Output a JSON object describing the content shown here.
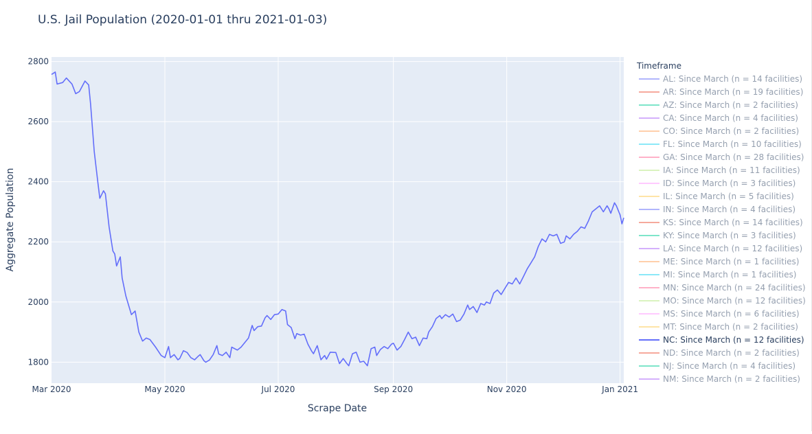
{
  "chart_data": {
    "type": "line",
    "title": "U.S. Jail Population (2020-01-01 thru 2021-01-03)",
    "xlabel": "Scrape Date",
    "ylabel": "Aggregate Population",
    "xlim": [
      "2020-03-01",
      "2021-01-03"
    ],
    "ylim": [
      1730,
      2815
    ],
    "x_ticks": [
      {
        "date": "2020-03-01",
        "label": "Mar 2020"
      },
      {
        "date": "2020-05-01",
        "label": "May 2020"
      },
      {
        "date": "2020-07-01",
        "label": "Jul 2020"
      },
      {
        "date": "2020-09-01",
        "label": "Sep 2020"
      },
      {
        "date": "2020-11-01",
        "label": "Nov 2020"
      },
      {
        "date": "2021-01-01",
        "label": "Jan 2021"
      }
    ],
    "y_ticks": [
      {
        "value": 1800,
        "label": "1800"
      },
      {
        "value": 2000,
        "label": "2000"
      },
      {
        "value": 2200,
        "label": "2200"
      },
      {
        "value": 2400,
        "label": "2400"
      },
      {
        "value": 2600,
        "label": "2600"
      },
      {
        "value": 2800,
        "label": "2800"
      }
    ],
    "grid": true,
    "legend": {
      "title": "Timeframe",
      "position": "right",
      "entries": [
        {
          "label": "AL: Since March (n = 14 facilities)",
          "color": "#636efa",
          "active": false
        },
        {
          "label": "AR: Since March (n = 19 facilities)",
          "color": "#ef553b",
          "active": false
        },
        {
          "label": "AZ: Since March (n = 2 facilities)",
          "color": "#00cc96",
          "active": false
        },
        {
          "label": "CA: Since March (n = 4 facilities)",
          "color": "#ab63fa",
          "active": false
        },
        {
          "label": "CO: Since March (n = 2 facilities)",
          "color": "#ffa15a",
          "active": false
        },
        {
          "label": "FL: Since March (n = 10 facilities)",
          "color": "#19d3f3",
          "active": false
        },
        {
          "label": "GA: Since March (n = 28 facilities)",
          "color": "#ff6692",
          "active": false
        },
        {
          "label": "IA: Since March (n = 11 facilities)",
          "color": "#b6e880",
          "active": false
        },
        {
          "label": "ID: Since March (n = 3 facilities)",
          "color": "#ff97ff",
          "active": false
        },
        {
          "label": "IL: Since March (n = 5 facilities)",
          "color": "#fecb52",
          "active": false
        },
        {
          "label": "IN: Since March (n = 4 facilities)",
          "color": "#636efa",
          "active": false
        },
        {
          "label": "KS: Since March (n = 14 facilities)",
          "color": "#ef553b",
          "active": false
        },
        {
          "label": "KY: Since March (n = 3 facilities)",
          "color": "#00cc96",
          "active": false
        },
        {
          "label": "LA: Since March (n = 12 facilities)",
          "color": "#ab63fa",
          "active": false
        },
        {
          "label": "ME: Since March (n = 1 facilities)",
          "color": "#ffa15a",
          "active": false
        },
        {
          "label": "MI: Since March (n = 1 facilities)",
          "color": "#19d3f3",
          "active": false
        },
        {
          "label": "MN: Since March (n = 24 facilities)",
          "color": "#ff6692",
          "active": false
        },
        {
          "label": "MO: Since March (n = 12 facilities)",
          "color": "#b6e880",
          "active": false
        },
        {
          "label": "MS: Since March (n = 6 facilities)",
          "color": "#ff97ff",
          "active": false
        },
        {
          "label": "MT: Since March (n = 2 facilities)",
          "color": "#fecb52",
          "active": false
        },
        {
          "label": "NC: Since March (n = 12 facilities)",
          "color": "#636efa",
          "active": true
        },
        {
          "label": "ND: Since March (n = 2 facilities)",
          "color": "#ef553b",
          "active": false
        },
        {
          "label": "NJ: Since March (n = 4 facilities)",
          "color": "#00cc96",
          "active": false
        },
        {
          "label": "NM: Since March (n = 2 facilities)",
          "color": "#ab63fa",
          "active": false
        }
      ]
    },
    "series": [
      {
        "name": "NC: Since March (n = 12 facilities)",
        "color": "#636efa",
        "points": [
          [
            "2020-03-01",
            2757
          ],
          [
            "2020-03-03",
            2765
          ],
          [
            "2020-03-04",
            2725
          ],
          [
            "2020-03-07",
            2730
          ],
          [
            "2020-03-09",
            2745
          ],
          [
            "2020-03-12",
            2725
          ],
          [
            "2020-03-14",
            2693
          ],
          [
            "2020-03-16",
            2700
          ],
          [
            "2020-03-19",
            2735
          ],
          [
            "2020-03-21",
            2722
          ],
          [
            "2020-03-22",
            2660
          ],
          [
            "2020-03-24",
            2500
          ],
          [
            "2020-03-26",
            2395
          ],
          [
            "2020-03-27",
            2345
          ],
          [
            "2020-03-29",
            2370
          ],
          [
            "2020-03-30",
            2360
          ],
          [
            "2020-04-01",
            2250
          ],
          [
            "2020-04-03",
            2170
          ],
          [
            "2020-04-04",
            2160
          ],
          [
            "2020-04-05",
            2120
          ],
          [
            "2020-04-07",
            2150
          ],
          [
            "2020-04-08",
            2080
          ],
          [
            "2020-04-10",
            2020
          ],
          [
            "2020-04-13",
            1958
          ],
          [
            "2020-04-15",
            1970
          ],
          [
            "2020-04-17",
            1900
          ],
          [
            "2020-04-19",
            1870
          ],
          [
            "2020-04-21",
            1880
          ],
          [
            "2020-04-23",
            1875
          ],
          [
            "2020-04-26",
            1850
          ],
          [
            "2020-04-29",
            1822
          ],
          [
            "2020-05-01",
            1815
          ],
          [
            "2020-05-03",
            1852
          ],
          [
            "2020-05-04",
            1815
          ],
          [
            "2020-05-06",
            1825
          ],
          [
            "2020-05-08",
            1808
          ],
          [
            "2020-05-09",
            1812
          ],
          [
            "2020-05-11",
            1838
          ],
          [
            "2020-05-13",
            1832
          ],
          [
            "2020-05-15",
            1815
          ],
          [
            "2020-05-17",
            1808
          ],
          [
            "2020-05-19",
            1820
          ],
          [
            "2020-05-20",
            1825
          ],
          [
            "2020-05-22",
            1805
          ],
          [
            "2020-05-23",
            1800
          ],
          [
            "2020-05-25",
            1807
          ],
          [
            "2020-05-27",
            1825
          ],
          [
            "2020-05-29",
            1855
          ],
          [
            "2020-05-30",
            1827
          ],
          [
            "2020-06-01",
            1822
          ],
          [
            "2020-06-03",
            1833
          ],
          [
            "2020-06-05",
            1815
          ],
          [
            "2020-06-06",
            1850
          ],
          [
            "2020-06-09",
            1840
          ],
          [
            "2020-06-11",
            1850
          ],
          [
            "2020-06-13",
            1865
          ],
          [
            "2020-06-15",
            1880
          ],
          [
            "2020-06-17",
            1922
          ],
          [
            "2020-06-18",
            1905
          ],
          [
            "2020-06-20",
            1918
          ],
          [
            "2020-06-22",
            1920
          ],
          [
            "2020-06-24",
            1948
          ],
          [
            "2020-06-25",
            1955
          ],
          [
            "2020-06-27",
            1942
          ],
          [
            "2020-06-29",
            1958
          ],
          [
            "2020-07-01",
            1960
          ],
          [
            "2020-07-03",
            1975
          ],
          [
            "2020-07-05",
            1970
          ],
          [
            "2020-07-06",
            1925
          ],
          [
            "2020-07-08",
            1915
          ],
          [
            "2020-07-10",
            1878
          ],
          [
            "2020-07-11",
            1895
          ],
          [
            "2020-07-13",
            1890
          ],
          [
            "2020-07-15",
            1893
          ],
          [
            "2020-07-17",
            1860
          ],
          [
            "2020-07-19",
            1837
          ],
          [
            "2020-07-20",
            1828
          ],
          [
            "2020-07-22",
            1855
          ],
          [
            "2020-07-24",
            1808
          ],
          [
            "2020-07-26",
            1822
          ],
          [
            "2020-07-27",
            1810
          ],
          [
            "2020-07-29",
            1833
          ],
          [
            "2020-08-01",
            1832
          ],
          [
            "2020-08-03",
            1795
          ],
          [
            "2020-08-05",
            1812
          ],
          [
            "2020-08-07",
            1795
          ],
          [
            "2020-08-08",
            1788
          ],
          [
            "2020-08-10",
            1828
          ],
          [
            "2020-08-12",
            1833
          ],
          [
            "2020-08-14",
            1800
          ],
          [
            "2020-08-16",
            1803
          ],
          [
            "2020-08-18",
            1788
          ],
          [
            "2020-08-20",
            1845
          ],
          [
            "2020-08-22",
            1850
          ],
          [
            "2020-08-23",
            1822
          ],
          [
            "2020-08-25",
            1842
          ],
          [
            "2020-08-27",
            1852
          ],
          [
            "2020-08-29",
            1845
          ],
          [
            "2020-08-31",
            1860
          ],
          [
            "2020-09-01",
            1863
          ],
          [
            "2020-09-03",
            1840
          ],
          [
            "2020-09-05",
            1852
          ],
          [
            "2020-09-07",
            1875
          ],
          [
            "2020-09-09",
            1900
          ],
          [
            "2020-09-11",
            1878
          ],
          [
            "2020-09-13",
            1883
          ],
          [
            "2020-09-15",
            1855
          ],
          [
            "2020-09-17",
            1880
          ],
          [
            "2020-09-19",
            1878
          ],
          [
            "2020-09-20",
            1900
          ],
          [
            "2020-09-22",
            1918
          ],
          [
            "2020-09-24",
            1945
          ],
          [
            "2020-09-26",
            1955
          ],
          [
            "2020-09-27",
            1945
          ],
          [
            "2020-09-29",
            1958
          ],
          [
            "2020-10-01",
            1950
          ],
          [
            "2020-10-03",
            1960
          ],
          [
            "2020-10-05",
            1935
          ],
          [
            "2020-10-07",
            1940
          ],
          [
            "2020-10-09",
            1960
          ],
          [
            "2020-10-11",
            1990
          ],
          [
            "2020-10-12",
            1975
          ],
          [
            "2020-10-14",
            1985
          ],
          [
            "2020-10-16",
            1965
          ],
          [
            "2020-10-18",
            1995
          ],
          [
            "2020-10-20",
            1990
          ],
          [
            "2020-10-21",
            2000
          ],
          [
            "2020-10-23",
            1995
          ],
          [
            "2020-10-25",
            2030
          ],
          [
            "2020-10-27",
            2040
          ],
          [
            "2020-10-29",
            2025
          ],
          [
            "2020-10-31",
            2045
          ],
          [
            "2020-11-02",
            2065
          ],
          [
            "2020-11-04",
            2060
          ],
          [
            "2020-11-06",
            2080
          ],
          [
            "2020-11-08",
            2060
          ],
          [
            "2020-11-10",
            2085
          ],
          [
            "2020-11-12",
            2110
          ],
          [
            "2020-11-14",
            2130
          ],
          [
            "2020-11-16",
            2150
          ],
          [
            "2020-11-18",
            2185
          ],
          [
            "2020-11-20",
            2210
          ],
          [
            "2020-11-22",
            2200
          ],
          [
            "2020-11-24",
            2225
          ],
          [
            "2020-11-26",
            2220
          ],
          [
            "2020-11-28",
            2225
          ],
          [
            "2020-11-30",
            2195
          ],
          [
            "2020-12-02",
            2200
          ],
          [
            "2020-12-03",
            2220
          ],
          [
            "2020-12-05",
            2210
          ],
          [
            "2020-12-07",
            2225
          ],
          [
            "2020-12-09",
            2235
          ],
          [
            "2020-12-11",
            2250
          ],
          [
            "2020-12-13",
            2245
          ],
          [
            "2020-12-15",
            2270
          ],
          [
            "2020-12-17",
            2300
          ],
          [
            "2020-12-19",
            2310
          ],
          [
            "2020-12-21",
            2320
          ],
          [
            "2020-12-23",
            2300
          ],
          [
            "2020-12-25",
            2320
          ],
          [
            "2020-12-26",
            2310
          ],
          [
            "2020-12-27",
            2295
          ],
          [
            "2020-12-29",
            2330
          ],
          [
            "2020-12-30",
            2320
          ],
          [
            "2021-01-01",
            2290
          ],
          [
            "2021-01-02",
            2260
          ],
          [
            "2021-01-03",
            2280
          ]
        ]
      }
    ]
  }
}
